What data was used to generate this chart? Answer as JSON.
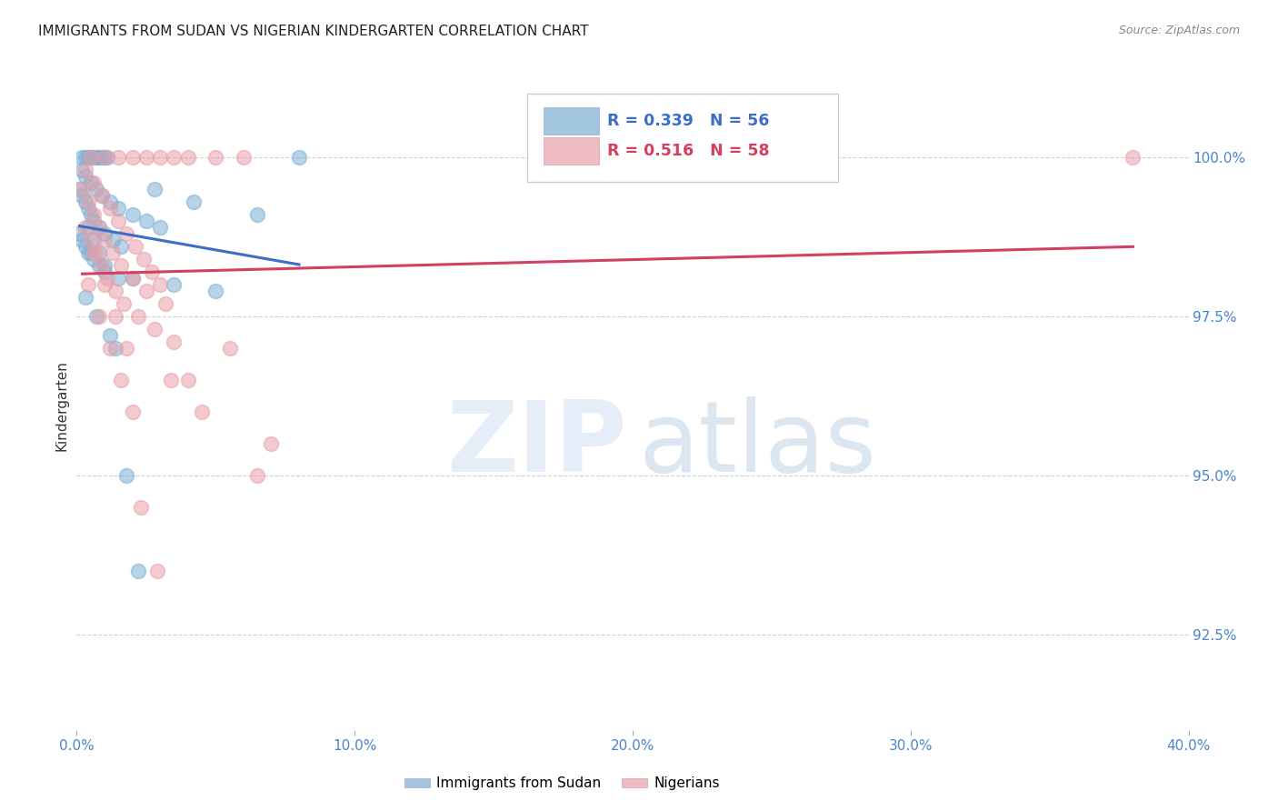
{
  "title": "IMMIGRANTS FROM SUDAN VS NIGERIAN KINDERGARTEN CORRELATION CHART",
  "source": "Source: ZipAtlas.com",
  "ylabel": "Kindergarten",
  "xlim": [
    0.0,
    40.0
  ],
  "ylim": [
    91.0,
    101.2
  ],
  "yticks": [
    92.5,
    95.0,
    97.5,
    100.0
  ],
  "xticks": [
    0.0,
    10.0,
    20.0,
    30.0,
    40.0
  ],
  "xtick_labels": [
    "0.0%",
    "10.0%",
    "20.0%",
    "30.0%",
    "40.0%"
  ],
  "ytick_labels": [
    "92.5%",
    "95.0%",
    "97.5%",
    "100.0%"
  ],
  "blue_color": "#7bafd4",
  "pink_color": "#e8a0a8",
  "blue_line_color": "#3c6dc8",
  "pink_line_color": "#d44060",
  "legend_blue_label": "Immigrants from Sudan",
  "legend_pink_label": "Nigerians",
  "R_blue": 0.339,
  "N_blue": 56,
  "R_pink": 0.516,
  "N_pink": 58,
  "background_color": "#ffffff",
  "axis_label_color": "#4a86c8",
  "title_fontsize": 11,
  "blue_x": [
    0.2,
    0.3,
    0.4,
    0.5,
    0.6,
    0.7,
    0.8,
    0.9,
    1.0,
    1.1,
    0.2,
    0.3,
    0.5,
    0.7,
    0.9,
    1.2,
    1.5,
    2.0,
    2.5,
    3.0,
    0.1,
    0.2,
    0.3,
    0.4,
    0.5,
    0.6,
    0.8,
    1.0,
    1.3,
    1.6,
    0.1,
    0.2,
    0.3,
    0.4,
    0.6,
    0.8,
    1.0,
    2.0,
    3.5,
    5.0,
    0.5,
    1.0,
    1.5,
    0.3,
    0.7,
    1.2,
    8.0,
    2.8,
    4.2,
    6.5,
    0.4,
    0.6,
    0.8,
    1.4,
    1.8,
    2.2
  ],
  "blue_y": [
    100.0,
    100.0,
    100.0,
    100.0,
    100.0,
    100.0,
    100.0,
    100.0,
    100.0,
    100.0,
    99.8,
    99.7,
    99.6,
    99.5,
    99.4,
    99.3,
    99.2,
    99.1,
    99.0,
    98.9,
    99.5,
    99.4,
    99.3,
    99.2,
    99.1,
    99.0,
    98.9,
    98.8,
    98.7,
    98.6,
    98.8,
    98.7,
    98.6,
    98.5,
    98.4,
    98.3,
    98.2,
    98.1,
    98.0,
    97.9,
    98.5,
    98.3,
    98.1,
    97.8,
    97.5,
    97.2,
    100.0,
    99.5,
    99.3,
    99.1,
    98.9,
    98.7,
    98.5,
    97.0,
    95.0,
    93.5
  ],
  "pink_x": [
    0.5,
    1.0,
    1.5,
    2.0,
    2.5,
    3.0,
    3.5,
    4.0,
    5.0,
    6.0,
    0.3,
    0.6,
    0.9,
    1.2,
    1.5,
    1.8,
    2.1,
    2.4,
    2.7,
    3.0,
    0.2,
    0.4,
    0.6,
    0.8,
    1.0,
    1.3,
    1.6,
    2.0,
    2.5,
    3.2,
    0.3,
    0.5,
    0.7,
    0.9,
    1.1,
    1.4,
    1.7,
    2.2,
    2.8,
    3.5,
    0.4,
    0.8,
    1.2,
    1.6,
    2.0,
    4.0,
    7.0,
    5.5,
    4.5,
    6.5,
    0.6,
    1.0,
    1.4,
    1.8,
    2.3,
    2.9,
    3.4,
    38.0
  ],
  "pink_y": [
    100.0,
    100.0,
    100.0,
    100.0,
    100.0,
    100.0,
    100.0,
    100.0,
    100.0,
    100.0,
    99.8,
    99.6,
    99.4,
    99.2,
    99.0,
    98.8,
    98.6,
    98.4,
    98.2,
    98.0,
    99.5,
    99.3,
    99.1,
    98.9,
    98.7,
    98.5,
    98.3,
    98.1,
    97.9,
    97.7,
    98.9,
    98.7,
    98.5,
    98.3,
    98.1,
    97.9,
    97.7,
    97.5,
    97.3,
    97.1,
    98.0,
    97.5,
    97.0,
    96.5,
    96.0,
    96.5,
    95.5,
    97.0,
    96.0,
    95.0,
    98.5,
    98.0,
    97.5,
    97.0,
    94.5,
    93.5,
    96.5,
    100.0
  ]
}
